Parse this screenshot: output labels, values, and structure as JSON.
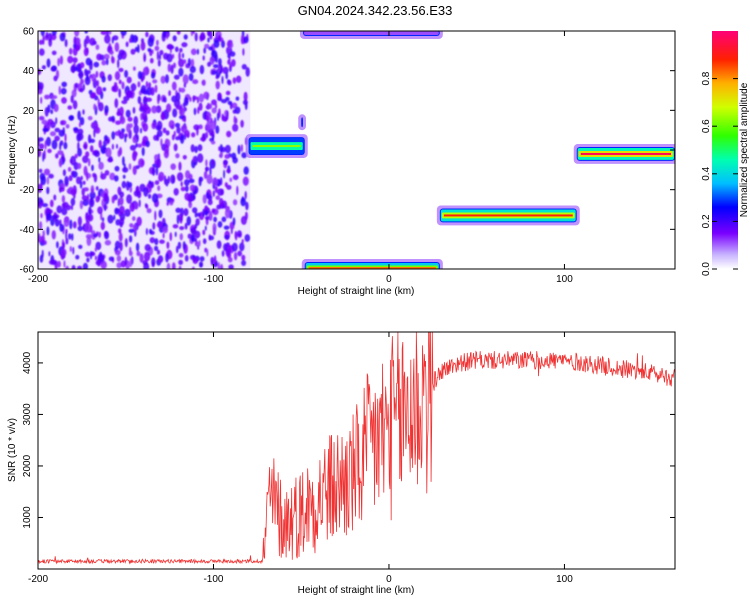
{
  "title": "GN04.2024.342.23.56.E33",
  "chart_data": [
    {
      "type": "heatmap",
      "xlabel": "Height of straight line (km)",
      "ylabel": "Frequency (Hz)",
      "xlim": [
        -200,
        163
      ],
      "ylim": [
        -60,
        60
      ],
      "xticks": [
        -200,
        -100,
        0,
        100
      ],
      "yticks": [
        -60,
        -40,
        -20,
        0,
        20,
        40,
        60
      ],
      "noise_region": {
        "x": [
          -200,
          -79
        ],
        "y": [
          -60,
          60
        ]
      },
      "features": [
        {
          "x": [
            -80,
            -48
          ],
          "y": [
            -2,
            6
          ],
          "amplitude": 0.65
        },
        {
          "x": [
            -50,
            -49
          ],
          "y": [
            12,
            16
          ],
          "amplitude": 0.5
        },
        {
          "x": [
            -49,
            29
          ],
          "y": [
            58,
            60
          ],
          "amplitude": 0.25
        },
        {
          "x": [
            -48,
            29
          ],
          "y": [
            -62,
            -57
          ],
          "amplitude": 0.85
        },
        {
          "x": [
            29,
            107
          ],
          "y": [
            -36,
            -30
          ],
          "amplitude": 0.92
        },
        {
          "x": [
            107,
            163
          ],
          "y": [
            -5,
            1
          ],
          "amplitude": 1.0
        }
      ],
      "colorbar": {
        "label": "Normalized spectral amplitude",
        "range": [
          0,
          1
        ],
        "ticks": [
          0.0,
          0.2,
          0.4,
          0.6,
          0.8
        ]
      }
    },
    {
      "type": "line",
      "xlabel": "Height of straight line (km)",
      "ylabel": "SNR (10 * v/v)",
      "xlim": [
        -200,
        163
      ],
      "ylim": [
        0,
        4600
      ],
      "xticks": [
        -200,
        -100,
        0,
        100
      ],
      "yticks": [
        1000,
        2000,
        3000,
        4000
      ],
      "series": [
        {
          "color": "#f03232",
          "x": [
            -200,
            -150,
            -100,
            -72,
            -68,
            -60,
            -50,
            -40,
            -30,
            -20,
            -10,
            0,
            10,
            20,
            25,
            30,
            40,
            50,
            60,
            70,
            80,
            90,
            100,
            110,
            120,
            130,
            140,
            150,
            163
          ],
          "y": [
            150,
            150,
            150,
            150,
            1400,
            900,
            1100,
            1400,
            1600,
            1800,
            2400,
            2700,
            3050,
            3400,
            3600,
            3850,
            4000,
            4050,
            4050,
            4050,
            4050,
            4050,
            4050,
            4000,
            3950,
            3900,
            3850,
            3800,
            3700
          ]
        }
      ]
    }
  ]
}
